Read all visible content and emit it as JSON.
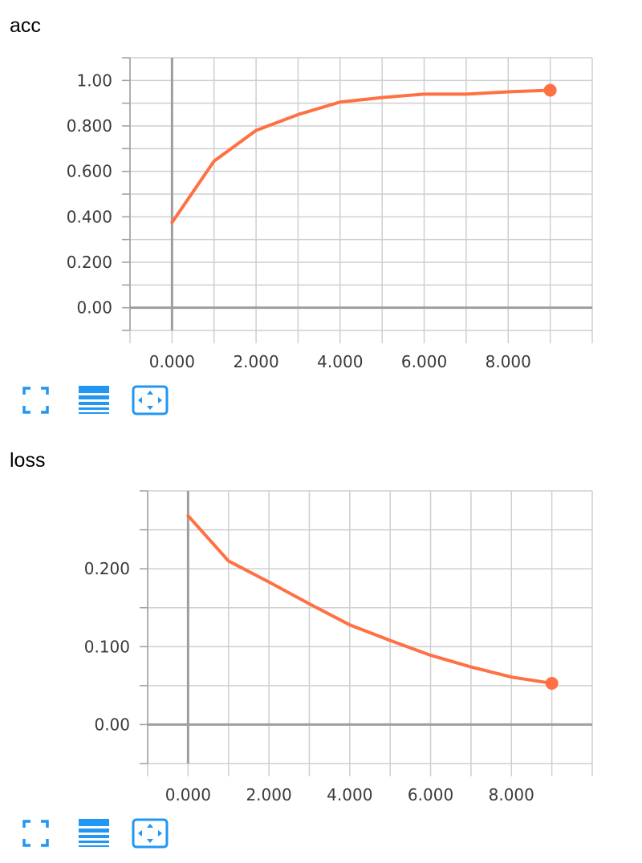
{
  "colors": {
    "series": "#ff7043",
    "accent": "#2196f3",
    "grid": "#cfcfcf",
    "axis": "#9e9e9e"
  },
  "toolbar_icons": [
    "expand-icon",
    "toggle-log-scale-icon",
    "fit-domain-icon"
  ],
  "chart_data": [
    {
      "type": "line",
      "title": "acc",
      "xlabel": "",
      "ylabel": "",
      "xlim": [
        -1,
        10
      ],
      "ylim": [
        -0.1,
        1.1
      ],
      "xticks": [
        0,
        2,
        4,
        6,
        8
      ],
      "xtick_labels": [
        "0.000",
        "2.000",
        "4.000",
        "6.000",
        "8.000"
      ],
      "yticks": [
        0,
        0.2,
        0.4,
        0.6,
        0.8,
        1.0
      ],
      "ytick_labels": [
        "0.00",
        "0.200",
        "0.400",
        "0.600",
        "0.800",
        "1.00"
      ],
      "grid": true,
      "series": [
        {
          "x": [
            0,
            1,
            2,
            3,
            4,
            5,
            6,
            7,
            8,
            9
          ],
          "y": [
            0.375,
            0.645,
            0.78,
            0.85,
            0.905,
            0.925,
            0.94,
            0.94,
            0.95,
            0.957
          ]
        }
      ]
    },
    {
      "type": "line",
      "title": "loss",
      "xlabel": "",
      "ylabel": "",
      "xlim": [
        -1,
        10
      ],
      "ylim": [
        -0.05,
        0.3
      ],
      "xticks": [
        0,
        2,
        4,
        6,
        8
      ],
      "xtick_labels": [
        "0.000",
        "2.000",
        "4.000",
        "6.000",
        "8.000"
      ],
      "yticks": [
        0,
        0.1,
        0.2
      ],
      "ytick_labels": [
        "0.00",
        "0.100",
        "0.200"
      ],
      "grid": true,
      "series": [
        {
          "x": [
            0,
            1,
            2,
            3,
            4,
            5,
            6,
            7,
            8,
            9
          ],
          "y": [
            0.268,
            0.21,
            0.183,
            0.155,
            0.128,
            0.108,
            0.089,
            0.074,
            0.061,
            0.053
          ]
        }
      ]
    }
  ]
}
